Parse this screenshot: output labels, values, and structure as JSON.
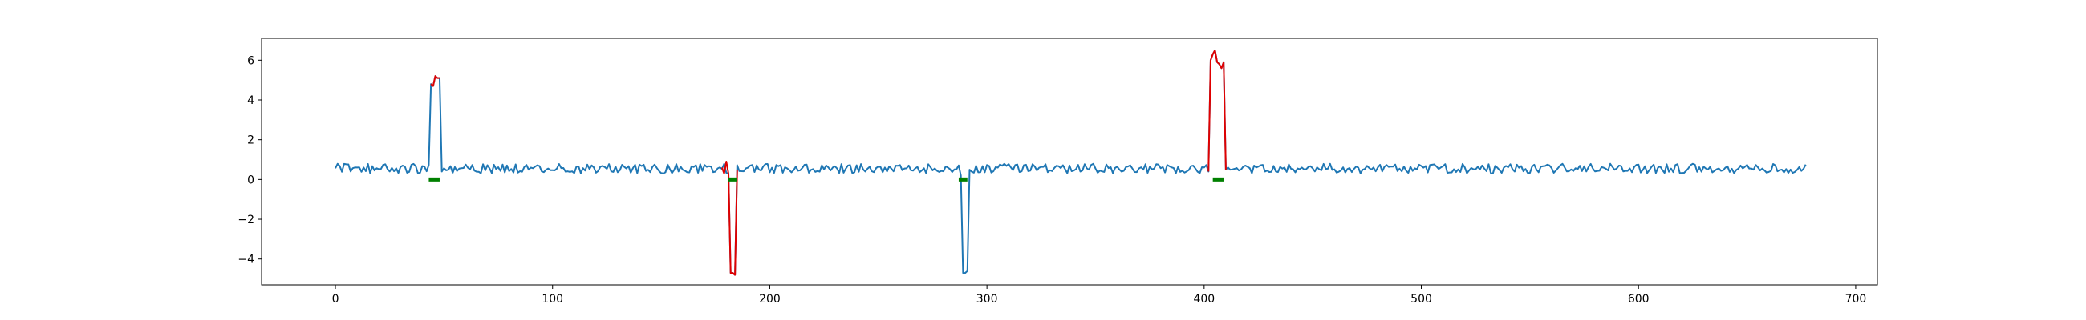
{
  "chart_data": {
    "type": "line",
    "title": "",
    "xlabel": "",
    "ylabel": "",
    "xlim": [
      -34,
      710
    ],
    "ylim": [
      -5.3,
      7.1
    ],
    "x_ticks": [
      0,
      100,
      200,
      300,
      400,
      500,
      600,
      700
    ],
    "y_ticks": [
      -4,
      -2,
      0,
      2,
      4,
      6
    ],
    "grid": false,
    "legend": "none",
    "colors": {
      "signal": "#1f77b4",
      "anomaly": "#e00000",
      "marker": "#008000"
    },
    "signal": {
      "x_start": 0,
      "x_end": 677,
      "baseline": 0.55,
      "noise_amplitude": 0.24,
      "segments": [
        {
          "x": [
            44,
            45,
            46,
            47,
            48,
            49
          ],
          "y": [
            4.8,
            4.7,
            5.2,
            5.1,
            5.1,
            0.4
          ]
        },
        {
          "x": [
            181,
            182,
            183,
            184
          ],
          "y": [
            0.3,
            -4.7,
            -4.7,
            -4.8
          ]
        },
        {
          "x": [
            288,
            289,
            290,
            291
          ],
          "y": [
            0.2,
            -4.7,
            -4.7,
            -4.6
          ]
        },
        {
          "x": [
            402,
            403,
            404,
            405,
            406,
            407,
            408,
            409,
            410
          ],
          "y": [
            0.4,
            6.0,
            6.3,
            6.5,
            5.9,
            5.8,
            5.6,
            5.9,
            0.5
          ]
        }
      ]
    },
    "anomaly_ranges": [
      {
        "x": [
          44,
          45,
          46,
          47,
          48
        ],
        "y": [
          4.8,
          4.7,
          5.2,
          5.1,
          5.1
        ]
      },
      {
        "x": [
          178,
          179,
          180,
          181,
          182,
          183,
          184,
          185
        ],
        "y": [
          0.6,
          0.3,
          0.9,
          0.3,
          -4.7,
          -4.7,
          -4.8,
          0.5
        ]
      },
      {
        "x": [
          402,
          403,
          404,
          405,
          406,
          407,
          408,
          409,
          410
        ],
        "y": [
          0.4,
          6.0,
          6.3,
          6.5,
          5.9,
          5.8,
          5.6,
          5.9,
          0.5
        ]
      }
    ],
    "markers": [
      {
        "x_start": 43,
        "x_end": 48,
        "y": 0
      },
      {
        "x_start": 181,
        "x_end": 185,
        "y": 0
      },
      {
        "x_start": 287,
        "x_end": 291,
        "y": 0
      },
      {
        "x_start": 404,
        "x_end": 409,
        "y": 0
      }
    ]
  }
}
